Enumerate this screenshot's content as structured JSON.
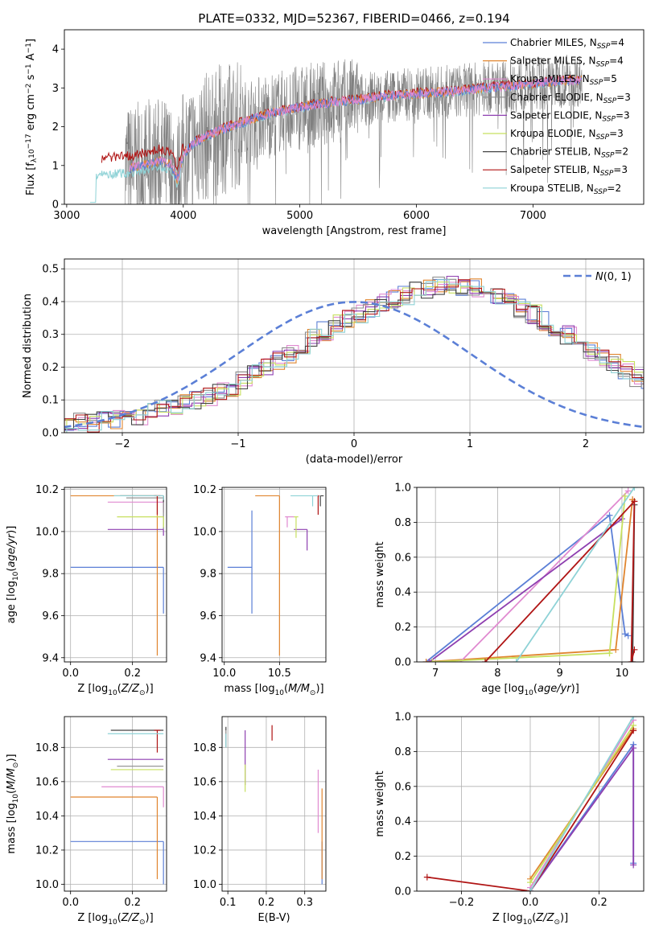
{
  "figure": {
    "suptitle": "PLATE=0332, MJD=52367, FIBERID=0466, z=0.194"
  },
  "colors": {
    "chabrier_miles": "#5b7fd6",
    "salpeter_miles": "#e0852f",
    "kroupa_miles": "#e08ad0",
    "chabrier_elodie": "#8b8b8b",
    "salpeter_elodie": "#8e3fb0",
    "kroupa_elodie": "#c7e05f",
    "chabrier_stelib": "#444444",
    "salpeter_stelib": "#b01515",
    "kroupa_stelib": "#8ed2d6",
    "data_spectrum": "#808080"
  },
  "chart_data": [
    {
      "id": "spectrum",
      "type": "line",
      "title": "PLATE=0332, MJD=52367, FIBERID=0466, z=0.194",
      "xlabel": "wavelength [Angstrom, rest frame]",
      "ylabel": "Flux [f_λ 10^-17 erg cm^-2 s^-1 A^-1]",
      "xlim": [
        2980,
        7950
      ],
      "ylim": [
        0,
        4.5
      ],
      "xticks": [
        3000,
        4000,
        5000,
        6000,
        7000
      ],
      "yticks": [
        0,
        1,
        2,
        3,
        4
      ],
      "legend": [
        {
          "label": "Chabrier MILES, N",
          "sub": "SSP",
          "val": "=4",
          "color": "chabrier_miles"
        },
        {
          "label": "Salpeter MILES, N",
          "sub": "SSP",
          "val": "=4",
          "color": "salpeter_miles"
        },
        {
          "label": "Kroupa MILES, N",
          "sub": "SSP",
          "val": "=5",
          "color": "kroupa_miles"
        },
        {
          "label": "Chabrier ELODIE, N",
          "sub": "SSP",
          "val": "=3",
          "color": "chabrier_elodie"
        },
        {
          "label": "Salpeter ELODIE, N",
          "sub": "SSP",
          "val": "=3",
          "color": "salpeter_elodie"
        },
        {
          "label": "Kroupa ELODIE, N",
          "sub": "SSP",
          "val": "=3",
          "color": "kroupa_elodie"
        },
        {
          "label": "Chabrier STELIB, N",
          "sub": "SSP",
          "val": "=2",
          "color": "chabrier_stelib"
        },
        {
          "label": "Salpeter STELIB, N",
          "sub": "SSP",
          "val": "=3",
          "color": "salpeter_stelib"
        },
        {
          "label": "Kroupa STELIB, N",
          "sub": "SSP",
          "val": "=2",
          "color": "kroupa_stelib"
        }
      ],
      "data_range": [
        3500,
        7420
      ],
      "model_shape": [
        [
          3200,
          0.85
        ],
        [
          3400,
          0.9
        ],
        [
          3600,
          0.95
        ],
        [
          3800,
          1.1
        ],
        [
          3900,
          1.0
        ],
        [
          3950,
          0.6
        ],
        [
          4000,
          1.3
        ],
        [
          4100,
          1.6
        ],
        [
          4300,
          1.9
        ],
        [
          4500,
          2.1
        ],
        [
          4700,
          2.3
        ],
        [
          5000,
          2.5
        ],
        [
          5200,
          2.6
        ],
        [
          5500,
          2.7
        ],
        [
          5800,
          2.8
        ],
        [
          6000,
          2.85
        ],
        [
          6300,
          2.9
        ],
        [
          6600,
          3.0
        ],
        [
          7000,
          3.1
        ],
        [
          7300,
          3.2
        ],
        [
          7400,
          3.2
        ]
      ]
    },
    {
      "id": "residuals",
      "type": "line",
      "xlabel": "(data-model)/error",
      "ylabel": "Normed distribution",
      "xlim": [
        -2.5,
        2.5
      ],
      "ylim": [
        0,
        0.53
      ],
      "xticks": [
        -2,
        -1,
        0,
        1,
        2
      ],
      "yticks": [
        0.0,
        0.1,
        0.2,
        0.3,
        0.4,
        0.5
      ],
      "reference_label": "N(0,1)",
      "bin_width": 0.1,
      "base_curve": [
        0.02,
        0.02,
        0.03,
        0.03,
        0.04,
        0.04,
        0.05,
        0.05,
        0.06,
        0.07,
        0.08,
        0.09,
        0.1,
        0.11,
        0.13,
        0.14,
        0.16,
        0.18,
        0.2,
        0.22,
        0.24,
        0.26,
        0.29,
        0.31,
        0.33,
        0.35,
        0.36,
        0.38,
        0.4,
        0.41,
        0.42,
        0.43,
        0.44,
        0.45,
        0.45,
        0.44,
        0.44,
        0.43,
        0.42,
        0.4,
        0.38,
        0.36,
        0.34,
        0.32,
        0.3,
        0.28,
        0.25,
        0.23,
        0.21,
        0.19,
        0.17,
        0.15,
        0.13,
        0.11,
        0.1,
        0.09,
        0.08,
        0.07,
        0.06,
        0.05,
        0.05,
        0.04,
        0.04,
        0.03,
        0.03,
        0.03,
        0.02,
        0.02,
        0.02,
        0.02,
        0.02,
        0.02,
        0.02,
        0.02,
        0.02,
        0.02,
        0.02,
        0.02,
        0.02,
        0.02
      ]
    },
    {
      "id": "age_vs_Z",
      "type": "scatter",
      "xlabel": "Z [log10(Z/Z⊙)]",
      "ylabel": "age [log10(age/yr)]",
      "xlim": [
        -0.02,
        0.31
      ],
      "ylim": [
        9.38,
        10.21
      ],
      "xticks": [
        0.0,
        0.2
      ],
      "yticks": [
        9.4,
        9.6,
        9.8,
        10.0,
        10.2
      ],
      "points": [
        {
          "model": "chabrier_miles",
          "x": 0.3,
          "y": 9.83,
          "xerr": [
            0.3,
            0.0
          ],
          "yerr": [
            0.22,
            0.0
          ]
        },
        {
          "model": "salpeter_miles",
          "x": 0.28,
          "y": 10.17,
          "xerr": [
            0.28,
            0.0
          ],
          "yerr": [
            0.76,
            0.0
          ]
        },
        {
          "model": "kroupa_miles",
          "x": 0.3,
          "y": 10.14,
          "xerr": [
            0.18,
            0.0
          ],
          "yerr": [
            0.05,
            0.0
          ]
        },
        {
          "model": "chabrier_elodie",
          "x": 0.3,
          "y": 10.16,
          "xerr": [
            0.12,
            0.0
          ],
          "yerr": [
            0.15,
            0.0
          ]
        },
        {
          "model": "salpeter_elodie",
          "x": 0.3,
          "y": 10.01,
          "xerr": [
            0.18,
            0.0
          ],
          "yerr": [
            0.03,
            0.0
          ]
        },
        {
          "model": "kroupa_elodie",
          "x": 0.3,
          "y": 10.07,
          "xerr": [
            0.15,
            0.0
          ],
          "yerr": [
            0.05,
            0.0
          ]
        },
        {
          "model": "chabrier_stelib",
          "x": 0.3,
          "y": 10.17,
          "xerr": [
            0.14,
            0.0
          ],
          "yerr": [
            0.03,
            0.0
          ]
        },
        {
          "model": "salpeter_stelib",
          "x": 0.28,
          "y": 10.17,
          "xerr": [
            0.01,
            0.01
          ],
          "yerr": [
            0.09,
            0.0
          ]
        },
        {
          "model": "kroupa_stelib",
          "x": 0.3,
          "y": 10.17,
          "xerr": [
            0.16,
            0.0
          ],
          "yerr": [
            0.02,
            0.0
          ]
        }
      ]
    },
    {
      "id": "age_vs_mass",
      "type": "scatter",
      "xlabel": "mass [log10(M/M⊙)]",
      "ylabel": "",
      "xlim": [
        9.98,
        10.92
      ],
      "ylim": [
        9.38,
        10.21
      ],
      "xticks": [
        10.0,
        10.5
      ],
      "yticks": [
        9.4,
        9.6,
        9.8,
        10.0,
        10.2
      ],
      "points": [
        {
          "model": "chabrier_miles",
          "x": 10.25,
          "y": 9.83,
          "xerr": [
            0.22,
            0.0
          ],
          "yerr": [
            0.22,
            0.27
          ]
        },
        {
          "model": "salpeter_miles",
          "x": 10.5,
          "y": 10.17,
          "xerr": [
            0.22,
            0.0
          ],
          "yerr": [
            0.76,
            0.0
          ]
        },
        {
          "model": "kroupa_miles",
          "x": 10.57,
          "y": 10.07,
          "xerr": [
            0.02,
            0.07
          ],
          "yerr": [
            0.05,
            0.0
          ]
        },
        {
          "model": "chabrier_elodie",
          "x": 10.67,
          "y": 10.16,
          "xerr": [
            0.0,
            0.0
          ],
          "yerr": [
            0.0,
            0.0
          ]
        },
        {
          "model": "salpeter_elodie",
          "x": 10.75,
          "y": 10.01,
          "xerr": [
            0.12,
            0.0
          ],
          "yerr": [
            0.1,
            0.0
          ]
        },
        {
          "model": "kroupa_elodie",
          "x": 10.65,
          "y": 10.07,
          "xerr": [
            0.02,
            0.02
          ],
          "yerr": [
            0.1,
            0.0
          ]
        },
        {
          "model": "chabrier_stelib",
          "x": 10.87,
          "y": 10.17,
          "xerr": [
            0.0,
            0.03
          ],
          "yerr": [
            0.05,
            0.0
          ]
        },
        {
          "model": "salpeter_stelib",
          "x": 10.85,
          "y": 10.17,
          "xerr": [
            0.01,
            0.01
          ],
          "yerr": [
            0.09,
            0.0
          ]
        },
        {
          "model": "kroupa_stelib",
          "x": 10.8,
          "y": 10.17,
          "xerr": [
            0.2,
            0.05
          ],
          "yerr": [
            0.05,
            0.0
          ]
        }
      ]
    },
    {
      "id": "massweight_vs_age",
      "type": "line",
      "xlabel": "age [log10(age/yr)]",
      "ylabel": "mass weight",
      "xlim": [
        6.7,
        10.35
      ],
      "ylim": [
        0,
        1.0
      ],
      "xticks": [
        7,
        8,
        9,
        10
      ],
      "yticks": [
        0.0,
        0.2,
        0.4,
        0.6,
        0.8,
        1.0
      ],
      "series": [
        {
          "model": "chabrier_miles",
          "x": [
            6.85,
            9.8,
            10.05,
            10.1
          ],
          "y": [
            0.0,
            0.84,
            0.16,
            0.15
          ]
        },
        {
          "model": "salpeter_miles",
          "x": [
            6.85,
            9.9,
            10.17,
            10.17
          ],
          "y": [
            0.0,
            0.07,
            0.93,
            0.93
          ]
        },
        {
          "model": "kroupa_miles",
          "x": [
            7.4,
            10.1
          ],
          "y": [
            0.0,
            0.98
          ]
        },
        {
          "model": "salpeter_elodie",
          "x": [
            6.9,
            10.0
          ],
          "y": [
            0.0,
            0.82
          ]
        },
        {
          "model": "kroupa_elodie",
          "x": [
            6.95,
            9.8,
            10.05,
            9.8
          ],
          "y": [
            0.0,
            0.05,
            0.95,
            0.05
          ]
        },
        {
          "model": "chabrier_stelib",
          "x": [
            10.17,
            10.2
          ],
          "y": [
            0.0,
            0.9
          ]
        },
        {
          "model": "salpeter_stelib",
          "x": [
            7.8,
            10.2,
            10.15,
            10.2
          ],
          "y": [
            0.0,
            0.92,
            0.0,
            0.07
          ]
        },
        {
          "model": "kroupa_stelib",
          "x": [
            8.3,
            10.2
          ],
          "y": [
            0.0,
            1.0
          ]
        }
      ]
    },
    {
      "id": "mass_vs_Z",
      "type": "scatter",
      "xlabel": "Z [log10(Z/Z⊙)]",
      "ylabel": "mass [log10(M/M⊙)]",
      "xlim": [
        -0.02,
        0.31
      ],
      "ylim": [
        9.96,
        10.98
      ],
      "xticks": [
        0.0,
        0.2
      ],
      "yticks": [
        10.0,
        10.2,
        10.4,
        10.6,
        10.8
      ],
      "points": [
        {
          "model": "chabrier_miles",
          "x": 0.3,
          "y": 10.25,
          "xerr": [
            0.3,
            0.0
          ],
          "yerr": [
            0.25,
            0.0
          ]
        },
        {
          "model": "salpeter_miles",
          "x": 0.28,
          "y": 10.51,
          "xerr": [
            0.28,
            0.0
          ],
          "yerr": [
            0.48,
            0.0
          ]
        },
        {
          "model": "kroupa_miles",
          "x": 0.3,
          "y": 10.57,
          "xerr": [
            0.2,
            0.0
          ],
          "yerr": [
            0.12,
            0.0
          ]
        },
        {
          "model": "chabrier_elodie",
          "x": 0.3,
          "y": 10.69,
          "xerr": [
            0.15,
            0.0
          ],
          "yerr": [
            0.0,
            0.0
          ]
        },
        {
          "model": "salpeter_elodie",
          "x": 0.3,
          "y": 10.73,
          "xerr": [
            0.18,
            0.0
          ],
          "yerr": [
            0.0,
            0.0
          ]
        },
        {
          "model": "kroupa_elodie",
          "x": 0.3,
          "y": 10.67,
          "xerr": [
            0.17,
            0.0
          ],
          "yerr": [
            0.0,
            0.0
          ]
        },
        {
          "model": "chabrier_stelib",
          "x": 0.3,
          "y": 10.9,
          "xerr": [
            0.17,
            0.0
          ],
          "yerr": [
            0.0,
            0.0
          ]
        },
        {
          "model": "salpeter_stelib",
          "x": 0.28,
          "y": 10.9,
          "xerr": [
            0.01,
            0.01
          ],
          "yerr": [
            0.13,
            0.0
          ]
        },
        {
          "model": "kroupa_stelib",
          "x": 0.3,
          "y": 10.88,
          "xerr": [
            0.18,
            0.0
          ],
          "yerr": [
            0.0,
            0.0
          ]
        }
      ]
    },
    {
      "id": "mass_vs_ebv",
      "type": "scatter",
      "xlabel": "E(B-V)",
      "ylabel": "",
      "xlim": [
        0.085,
        0.355
      ],
      "ylim": [
        9.96,
        10.98
      ],
      "xticks": [
        0.1,
        0.2,
        0.3
      ],
      "yticks": [
        10.0,
        10.2,
        10.4,
        10.6,
        10.8
      ],
      "points": [
        {
          "model": "chabrier_miles",
          "x": 0.345,
          "y": 10.25,
          "xerr": [
            0.0,
            0.0
          ],
          "yerr": [
            0.25,
            0.0
          ]
        },
        {
          "model": "salpeter_miles",
          "x": 0.345,
          "y": 10.51,
          "xerr": [
            0.0,
            0.0
          ],
          "yerr": [
            0.48,
            0.05
          ]
        },
        {
          "model": "kroupa_miles",
          "x": 0.335,
          "y": 10.57,
          "xerr": [
            0.0,
            0.0
          ],
          "yerr": [
            0.27,
            0.1
          ]
        },
        {
          "model": "chabrier_elodie",
          "x": 0.095,
          "y": 10.85,
          "xerr": [
            0.0,
            0.0
          ],
          "yerr": [
            0.05,
            0.05
          ]
        },
        {
          "model": "salpeter_elodie",
          "x": 0.145,
          "y": 10.73,
          "xerr": [
            0.0,
            0.0
          ],
          "yerr": [
            0.15,
            0.17
          ]
        },
        {
          "model": "kroupa_elodie",
          "x": 0.145,
          "y": 10.67,
          "xerr": [
            0.0,
            0.0
          ],
          "yerr": [
            0.13,
            0.03
          ]
        },
        {
          "model": "chabrier_stelib",
          "x": 0.095,
          "y": 10.9,
          "xerr": [
            0.0,
            0.0
          ],
          "yerr": [
            0.0,
            0.02
          ]
        },
        {
          "model": "salpeter_stelib",
          "x": 0.215,
          "y": 10.9,
          "xerr": [
            0.0,
            0.0
          ],
          "yerr": [
            0.06,
            0.03
          ]
        },
        {
          "model": "kroupa_stelib",
          "x": 0.095,
          "y": 10.85,
          "xerr": [
            0.0,
            0.0
          ],
          "yerr": [
            0.05,
            0.03
          ]
        }
      ]
    },
    {
      "id": "massweight_vs_Z",
      "type": "line",
      "xlabel": "Z [log10(Z/Z⊙)]",
      "ylabel": "mass weight",
      "xlim": [
        -0.33,
        0.33
      ],
      "ylim": [
        0,
        1.0
      ],
      "xticks": [
        -0.2,
        0.0,
        0.2
      ],
      "yticks": [
        0.0,
        0.2,
        0.4,
        0.6,
        0.8,
        1.0
      ],
      "series": [
        {
          "model": "chabrier_miles",
          "x": [
            0.0,
            0.3,
            0.3
          ],
          "y": [
            0.0,
            0.84,
            0.16
          ]
        },
        {
          "model": "salpeter_miles",
          "x": [
            0.0,
            0.3
          ],
          "y": [
            0.07,
            0.93
          ]
        },
        {
          "model": "kroupa_miles",
          "x": [
            0.0,
            0.3
          ],
          "y": [
            0.02,
            0.98
          ]
        },
        {
          "model": "salpeter_elodie",
          "x": [
            0.0,
            0.3,
            0.3
          ],
          "y": [
            0.0,
            0.82,
            0.15
          ]
        },
        {
          "model": "kroupa_elodie",
          "x": [
            0.0,
            0.3
          ],
          "y": [
            0.05,
            0.95
          ]
        },
        {
          "model": "salpeter_stelib",
          "x": [
            -0.3,
            0.0,
            0.3
          ],
          "y": [
            0.08,
            0.0,
            0.92
          ]
        },
        {
          "model": "kroupa_stelib",
          "x": [
            0.0,
            0.3
          ],
          "y": [
            0.0,
            1.0
          ]
        }
      ]
    }
  ]
}
